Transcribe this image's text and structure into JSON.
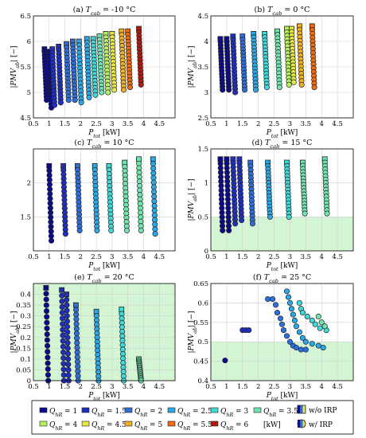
{
  "colors": {
    "q1": "#0b0b8c",
    "q1_5": "#1f2fbf",
    "q2": "#2e6fdc",
    "q2_5": "#2aa8e8",
    "q3": "#3fd9d9",
    "q3_5": "#6fe6b0",
    "q4": "#b5f060",
    "q4_5": "#e8e840",
    "q5": "#f0b020",
    "q5_5": "#f06a10",
    "q6": "#b01a10",
    "comfort_zone": "#d4f5d4",
    "grid": "#cfcfcf"
  },
  "legend": {
    "q_symbol": "Q",
    "q_sub": "hR",
    "items": [
      {
        "value": "1",
        "color_key": "q1"
      },
      {
        "value": "1.5",
        "color_key": "q1_5"
      },
      {
        "value": "2",
        "color_key": "q2"
      },
      {
        "value": "2.5",
        "color_key": "q2_5"
      },
      {
        "value": "3",
        "color_key": "q3"
      },
      {
        "value": "3.5",
        "color_key": "q3_5"
      },
      {
        "value": "4",
        "color_key": "q4"
      },
      {
        "value": "4.5",
        "color_key": "q4_5"
      },
      {
        "value": "5",
        "color_key": "q5"
      },
      {
        "value": "5.5",
        "color_key": "q5_5"
      },
      {
        "value": "6",
        "color_key": "q6"
      }
    ],
    "unit": "[kW]",
    "without_irp": "w/o IRP",
    "with_irp": "w/ IRP"
  },
  "chart_data": [
    {
      "type": "scatter",
      "title": "(a) T_cab = -10 °C",
      "xlabel": "P_tot [kW]",
      "ylabel": "|PMV_ab| [−]",
      "xlim": [
        0.5,
        5.0
      ],
      "ylim": [
        4.5,
        6.5
      ],
      "xticks": [
        0.5,
        1,
        1.5,
        2,
        2.5,
        3,
        3.5,
        4,
        4.5
      ],
      "yticks": [
        4.5,
        5,
        5.5,
        6,
        6.5
      ],
      "comfort_zone": null,
      "series": [
        {
          "q": "1",
          "columns": [
            [
              0.85,
              5.85,
              4.85
            ],
            [
              1.0,
              5.8,
              4.7
            ]
          ]
        },
        {
          "q": "1.5",
          "columns": [
            [
              1.1,
              5.85,
              4.75
            ],
            [
              1.3,
              5.9,
              4.8
            ]
          ]
        },
        {
          "q": "2",
          "columns": [
            [
              1.55,
              5.95,
              4.85
            ],
            [
              1.75,
              6.0,
              4.85
            ]
          ]
        },
        {
          "q": "2.5",
          "columns": [
            [
              1.95,
              6.0,
              4.8
            ],
            [
              2.2,
              6.05,
              4.9
            ]
          ]
        },
        {
          "q": "3",
          "columns": [
            [
              2.4,
              6.05,
              4.95
            ]
          ]
        },
        {
          "q": "3.5",
          "columns": [
            [
              2.6,
              6.1,
              5.0
            ]
          ]
        },
        {
          "q": "4",
          "columns": [
            [
              2.8,
              6.15,
              5.0
            ]
          ]
        },
        {
          "q": "4.5",
          "columns": [
            [
              3.0,
              6.15,
              5.05
            ]
          ]
        },
        {
          "q": "5",
          "columns": [
            [
              3.3,
              6.2,
              5.05
            ]
          ]
        },
        {
          "q": "5.5",
          "columns": [
            [
              3.5,
              6.2,
              5.1
            ]
          ]
        },
        {
          "q": "6",
          "columns": [
            [
              3.85,
              6.25,
              5.15
            ]
          ]
        }
      ]
    },
    {
      "type": "scatter",
      "title": "(b) T_cab = 0 °C",
      "xlabel": "P_tot [kW]",
      "ylabel": "|PMV_ab| [−]",
      "xlim": [
        0.5,
        5.0
      ],
      "ylim": [
        2.5,
        4.5
      ],
      "xticks": [
        0.5,
        1,
        1.5,
        2,
        2.5,
        3,
        3.5,
        4,
        4.5
      ],
      "yticks": [
        2.5,
        3,
        3.5,
        4,
        4.5
      ],
      "comfort_zone": null,
      "series": [
        {
          "q": "1",
          "columns": [
            [
              0.8,
              4.05,
              3.05
            ],
            [
              1.0,
              4.05,
              3.05
            ]
          ]
        },
        {
          "q": "1.5",
          "columns": [
            [
              1.2,
              4.1,
              3.0
            ]
          ]
        },
        {
          "q": "2",
          "columns": [
            [
              1.5,
              4.1,
              3.05
            ]
          ]
        },
        {
          "q": "2.5",
          "columns": [
            [
              1.85,
              4.15,
              3.05
            ]
          ]
        },
        {
          "q": "3",
          "columns": [
            [
              2.2,
              4.15,
              3.1
            ]
          ]
        },
        {
          "q": "3.5",
          "columns": [
            [
              2.6,
              4.2,
              3.1
            ]
          ]
        },
        {
          "q": "4",
          "columns": [
            [
              2.9,
              4.25,
              3.15
            ]
          ]
        },
        {
          "q": "4.5",
          "columns": [
            [
              3.05,
              4.25,
              3.2
            ]
          ]
        },
        {
          "q": "5",
          "columns": [
            [
              3.3,
              4.3,
              3.15
            ]
          ]
        },
        {
          "q": "5.5",
          "columns": [
            [
              3.7,
              4.3,
              3.1
            ]
          ]
        }
      ]
    },
    {
      "type": "scatter",
      "title": "(c) T_cab = 10 °C",
      "xlabel": "P_tot [kW]",
      "ylabel": "",
      "xlim": [
        0.5,
        5.0
      ],
      "ylim": [
        1.0,
        2.5
      ],
      "xticks": [
        0.5,
        1,
        1.5,
        2,
        2.5,
        3,
        3.5,
        4,
        4.5
      ],
      "yticks": [
        1.5,
        2
      ],
      "comfort_zone": null,
      "series": [
        {
          "q": "1",
          "columns": [
            [
              1.0,
              2.25,
              1.15
            ]
          ]
        },
        {
          "q": "1.5",
          "columns": [
            [
              1.45,
              2.25,
              1.25
            ]
          ]
        },
        {
          "q": "2",
          "columns": [
            [
              1.9,
              2.25,
              1.3
            ]
          ]
        },
        {
          "q": "2.5",
          "columns": [
            [
              2.45,
              2.25,
              1.3
            ]
          ]
        },
        {
          "q": "3",
          "columns": [
            [
              2.9,
              2.25,
              1.3
            ]
          ]
        },
        {
          "q": "3.5",
          "columns": [
            [
              3.4,
              2.3,
              1.3
            ]
          ]
        },
        {
          "q": "3.5",
          "columns": [
            [
              3.85,
              2.35,
              1.3
            ]
          ]
        },
        {
          "q": "2.5",
          "columns": [
            [
              4.3,
              2.35,
              1.25
            ]
          ]
        }
      ]
    },
    {
      "type": "scatter",
      "title": "(d) T_cab = 15 °C",
      "xlabel": "P_tot [kW]",
      "ylabel": "|PMV_ab| [−]",
      "xlim": [
        0.5,
        5.0
      ],
      "ylim": [
        0,
        1.5
      ],
      "xticks": [
        0.5,
        1,
        1.5,
        2,
        2.5,
        3,
        3.5,
        4,
        4.5
      ],
      "yticks": [
        0,
        0.5,
        1,
        1.5
      ],
      "comfort_zone": 0.5,
      "series": [
        {
          "q": "1",
          "columns": [
            [
              0.8,
              1.35,
              0.3
            ],
            [
              1.0,
              1.35,
              0.3
            ]
          ]
        },
        {
          "q": "1.5",
          "columns": [
            [
              1.2,
              1.35,
              0.4
            ],
            [
              1.4,
              1.35,
              0.45
            ]
          ]
        },
        {
          "q": "2",
          "columns": [
            [
              1.75,
              1.3,
              0.4
            ]
          ]
        },
        {
          "q": "2.5",
          "columns": [
            [
              2.3,
              1.3,
              0.5
            ]
          ]
        },
        {
          "q": "3",
          "columns": [
            [
              2.9,
              1.3,
              0.5
            ]
          ]
        },
        {
          "q": "3.5",
          "columns": [
            [
              3.4,
              1.3,
              0.55
            ]
          ]
        },
        {
          "q": "3.5",
          "columns": [
            [
              4.1,
              1.35,
              0.55
            ]
          ]
        }
      ]
    },
    {
      "type": "scatter",
      "title": "(e) T_cab = 20 °C",
      "xlabel": "P_tot [kW]",
      "ylabel": "|PMV_ab| [−]",
      "xlim": [
        0.5,
        5.0
      ],
      "ylim": [
        0,
        0.45
      ],
      "xticks": [
        0.5,
        1,
        1.5,
        2,
        2.5,
        3,
        3.5,
        4,
        4.5
      ],
      "yticks": [
        0,
        0.05,
        0.1,
        0.15,
        0.2,
        0.25,
        0.3,
        0.35,
        0.4
      ],
      "comfort_zone": 0.45,
      "series": [
        {
          "q": "1",
          "columns": [
            [
              0.9,
              0.43,
              0.0
            ]
          ]
        },
        {
          "q": "1.5",
          "columns": [
            [
              1.4,
              0.42,
              0.0
            ],
            [
              1.55,
              0.4,
              0.0
            ]
          ]
        },
        {
          "q": "2",
          "columns": [
            [
              1.85,
              0.35,
              0.0
            ]
          ]
        },
        {
          "q": "2.5",
          "columns": [
            [
              2.5,
              0.32,
              0.0
            ]
          ]
        },
        {
          "q": "3",
          "columns": [
            [
              3.3,
              0.33,
              0.0
            ]
          ]
        },
        {
          "q": "3.5",
          "columns": [
            [
              3.85,
              0.1,
              0.0
            ]
          ]
        }
      ]
    },
    {
      "type": "scatter",
      "title": "(f) T_cab = 25 °C",
      "xlabel": "P_tot [kW]",
      "ylabel": "|PMV_ab| [−]",
      "xlim": [
        0.5,
        5.0
      ],
      "ylim": [
        0.4,
        0.65
      ],
      "xticks": [
        0.5,
        1,
        1.5,
        2,
        2.5,
        3,
        3.5,
        4,
        4.5
      ],
      "yticks": [
        0.4,
        0.45,
        0.5,
        0.55,
        0.6,
        0.65
      ],
      "comfort_zone": 0.5,
      "series": [
        {
          "q": "1",
          "points": [
            [
              0.95,
              0.452
            ]
          ]
        },
        {
          "q": "1.5",
          "points": [
            [
              1.5,
              0.53
            ],
            [
              1.6,
              0.53
            ],
            [
              1.7,
              0.53
            ]
          ]
        },
        {
          "q": "2",
          "points": [
            [
              2.3,
              0.61
            ],
            [
              2.45,
              0.61
            ],
            [
              2.55,
              0.595
            ],
            [
              2.6,
              0.575
            ],
            [
              2.7,
              0.56
            ],
            [
              2.75,
              0.545
            ],
            [
              2.8,
              0.53
            ],
            [
              2.9,
              0.515
            ],
            [
              3.0,
              0.5
            ],
            [
              3.1,
              0.49
            ],
            [
              3.2,
              0.485
            ],
            [
              3.35,
              0.48
            ],
            [
              3.5,
              0.48
            ]
          ]
        },
        {
          "q": "2.5",
          "points": [
            [
              2.9,
              0.63
            ],
            [
              2.95,
              0.615
            ],
            [
              3.0,
              0.6
            ],
            [
              3.05,
              0.585
            ],
            [
              3.1,
              0.57
            ],
            [
              3.15,
              0.555
            ],
            [
              3.2,
              0.54
            ],
            [
              3.3,
              0.525
            ],
            [
              3.4,
              0.51
            ],
            [
              3.5,
              0.5
            ],
            [
              3.7,
              0.495
            ],
            [
              3.9,
              0.49
            ],
            [
              4.05,
              0.485
            ]
          ]
        },
        {
          "q": "3",
          "points": [
            [
              3.3,
              0.6
            ],
            [
              3.35,
              0.585
            ],
            [
              3.4,
              0.575
            ],
            [
              3.55,
              0.565
            ],
            [
              3.7,
              0.555
            ],
            [
              3.8,
              0.545
            ],
            [
              3.95,
              0.535
            ],
            [
              4.15,
              0.53
            ]
          ]
        },
        {
          "q": "3.5",
          "points": [
            [
              3.9,
              0.565
            ],
            [
              4.0,
              0.55
            ],
            [
              4.1,
              0.54
            ]
          ]
        }
      ]
    }
  ]
}
